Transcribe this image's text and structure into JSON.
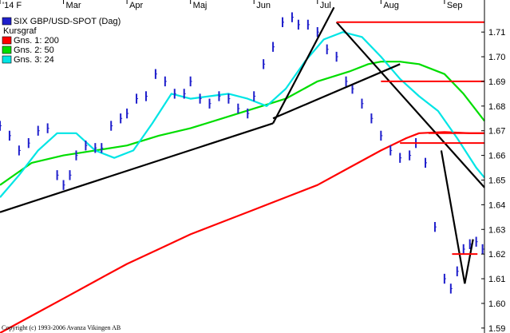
{
  "chart_data": {
    "type": "line",
    "legend": {
      "title": "SIX GBP/USD-SPOT (Dag)",
      "subtitle": "Kursgraf",
      "entries": [
        {
          "label": "Gns. 1: 200",
          "color": "#ff0000"
        },
        {
          "label": "Gns. 2: 50",
          "color": "#00dd00"
        },
        {
          "label": "Gns. 3: 24",
          "color": "#00e5e5"
        }
      ],
      "placement": "top-left"
    },
    "x_tick_labels": [
      "'14 F",
      "Mar",
      "Apr",
      "Maj",
      "Jun",
      "Jul",
      "Aug",
      "Sep"
    ],
    "x_tick_months": [
      0,
      1,
      2,
      3,
      4,
      5,
      6,
      7
    ],
    "x_range_months": [
      0,
      7.63
    ],
    "y_ticks": [
      "1.59",
      "1.60",
      "1.61",
      "1.62",
      "1.63",
      "1.64",
      "1.65",
      "1.66",
      "1.67",
      "1.68",
      "1.69",
      "1.70",
      "1.71"
    ],
    "ylim": [
      1.588,
      1.723
    ],
    "grid": false,
    "copyright": "Copyright (c) 1993-2006 Avanza Vikingen AB",
    "colors": {
      "price": "#1f1fcc",
      "ma200": "#ff0000",
      "ma50": "#00dd00",
      "ma24": "#00e5e5",
      "trend": "#000000",
      "level": "#ff0000"
    },
    "series": [
      {
        "name": "Gns. 1: 200",
        "color": "#ff0000",
        "x": [
          0,
          0.5,
          1,
          1.5,
          2,
          2.5,
          3,
          3.5,
          4,
          4.5,
          5,
          5.5,
          6,
          6.4,
          6.6,
          7,
          7.4,
          7.63
        ],
        "y": [
          1.588,
          1.595,
          1.602,
          1.609,
          1.616,
          1.622,
          1.628,
          1.633,
          1.638,
          1.643,
          1.648,
          1.655,
          1.662,
          1.667,
          1.669,
          1.6695,
          1.669,
          1.669
        ]
      },
      {
        "name": "Gns. 2: 50",
        "color": "#00dd00",
        "x": [
          0,
          0.5,
          1,
          1.5,
          2,
          2.5,
          3,
          3.5,
          4,
          4.5,
          5,
          5.5,
          5.8,
          6,
          6.3,
          6.6,
          7,
          7.3,
          7.63
        ],
        "y": [
          1.648,
          1.657,
          1.66,
          1.662,
          1.664,
          1.668,
          1.671,
          1.675,
          1.679,
          1.683,
          1.69,
          1.694,
          1.697,
          1.698,
          1.698,
          1.697,
          1.693,
          1.685,
          1.674
        ]
      },
      {
        "name": "Gns. 3: 24",
        "color": "#00e5e5",
        "x": [
          0,
          0.3,
          0.6,
          0.9,
          1.2,
          1.5,
          1.8,
          2.1,
          2.4,
          2.7,
          3.0,
          3.3,
          3.6,
          3.9,
          4.2,
          4.5,
          4.8,
          5.1,
          5.4,
          5.7,
          6.0,
          6.3,
          6.6,
          6.9,
          7.2,
          7.5,
          7.63
        ],
        "y": [
          1.643,
          1.652,
          1.662,
          1.669,
          1.669,
          1.662,
          1.659,
          1.662,
          1.673,
          1.685,
          1.683,
          1.684,
          1.685,
          1.683,
          1.68,
          1.687,
          1.698,
          1.707,
          1.71,
          1.708,
          1.7,
          1.691,
          1.684,
          1.678,
          1.667,
          1.655,
          1.651
        ]
      },
      {
        "name": "",
        "color": "#1f1fcc",
        "x": [
          0,
          0.15,
          0.3,
          0.45,
          0.6,
          0.75,
          0.9,
          1.0,
          1.1,
          1.2,
          1.35,
          1.5,
          1.6,
          1.75,
          1.9,
          2.0,
          2.15,
          2.3,
          2.45,
          2.6,
          2.75,
          2.9,
          3.0,
          3.15,
          3.3,
          3.45,
          3.6,
          3.75,
          3.9,
          4.0,
          4.15,
          4.3,
          4.45,
          4.6,
          4.7,
          4.85,
          5.0,
          5.15,
          5.3,
          5.45,
          5.55,
          5.7,
          5.85,
          6.0,
          6.15,
          6.3,
          6.45,
          6.55,
          6.7,
          6.85,
          7.0,
          7.1,
          7.2,
          7.3,
          7.4,
          7.5,
          7.6
        ],
        "y": [
          1.672,
          1.668,
          1.662,
          1.665,
          1.67,
          1.671,
          1.652,
          1.648,
          1.652,
          1.66,
          1.664,
          1.663,
          1.663,
          1.672,
          1.675,
          1.677,
          1.683,
          1.684,
          1.693,
          1.69,
          1.685,
          1.685,
          1.69,
          1.683,
          1.681,
          1.684,
          1.683,
          1.679,
          1.677,
          1.684,
          1.697,
          1.704,
          1.714,
          1.716,
          1.713,
          1.713,
          1.71,
          1.703,
          1.7,
          1.69,
          1.687,
          1.681,
          1.675,
          1.668,
          1.662,
          1.659,
          1.66,
          1.665,
          1.657,
          1.631,
          1.61,
          1.606,
          1.613,
          1.622,
          1.624,
          1.625,
          1.622
        ]
      }
    ],
    "trendlines": [
      {
        "x": [
          0,
          4.3
        ],
        "y": [
          1.637,
          1.673
        ]
      },
      {
        "x": [
          4.3,
          5.26
        ],
        "y": [
          1.673,
          1.72
        ]
      },
      {
        "x": [
          4.3,
          6.3
        ],
        "y": [
          1.675,
          1.697
        ]
      },
      {
        "x": [
          5.3,
          7.63
        ],
        "y": [
          1.714,
          1.647
        ]
      },
      {
        "x": [
          6.95,
          7.32
        ],
        "y": [
          1.662,
          1.608
        ]
      },
      {
        "x": [
          7.32,
          7.45
        ],
        "y": [
          1.608,
          1.626
        ]
      }
    ],
    "levels": [
      {
        "y": 1.714,
        "x": [
          5.3,
          7.63
        ]
      },
      {
        "y": 1.69,
        "x": [
          6.0,
          7.63
        ]
      },
      {
        "y": 1.669,
        "x": [
          6.75,
          7.63
        ]
      },
      {
        "y": 1.665,
        "x": [
          6.3,
          7.63
        ]
      },
      {
        "y": 1.62,
        "x": [
          7.12,
          7.52
        ]
      }
    ]
  }
}
